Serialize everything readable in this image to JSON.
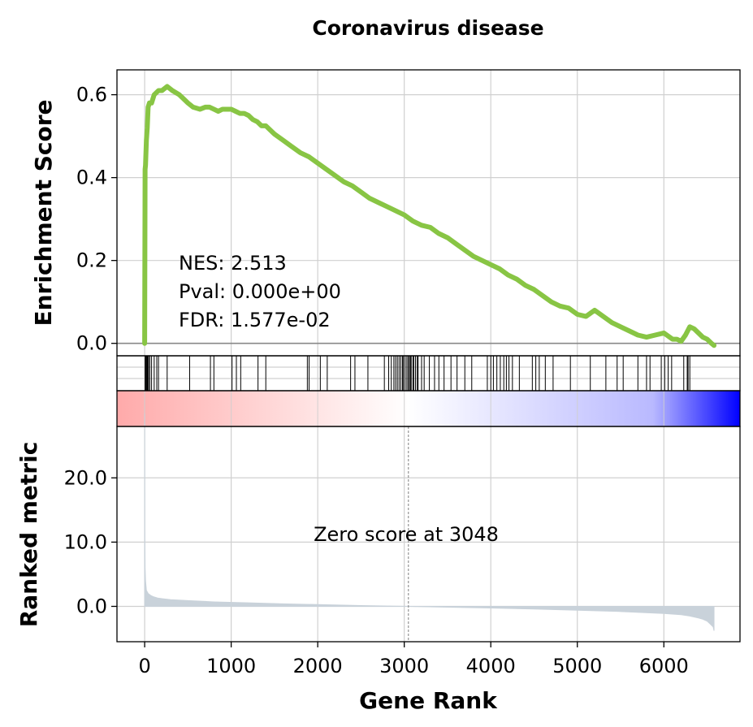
{
  "chart_data": {
    "type": "line",
    "title": "Coronavirus disease",
    "panels": {
      "enrichment": {
        "ylabel": "Enrichment Score",
        "ylim": [
          -0.03,
          0.66
        ],
        "yticks": [
          0.0,
          0.2,
          0.4,
          0.6
        ],
        "ytick_labels": [
          "0.0",
          "0.2",
          "0.4",
          "0.6"
        ],
        "line_color": "#88c544",
        "series": [
          {
            "x": [
              0,
              5,
              10,
              20,
              30,
              40,
              55,
              80,
              110,
              160,
              200,
              260,
              320,
              400,
              450,
              500,
              560,
              640,
              700,
              750,
              800,
              850,
              900,
              950,
              1000,
              1050,
              1100,
              1150,
              1200,
              1250,
              1300,
              1350,
              1400,
              1500,
              1600,
              1700,
              1800,
              1900,
              2000,
              2100,
              2200,
              2300,
              2400,
              2500,
              2600,
              2700,
              2800,
              2900,
              3000,
              3100,
              3200,
              3300,
              3400,
              3500,
              3600,
              3700,
              3800,
              3900,
              4000,
              4100,
              4200,
              4300,
              4400,
              4500,
              4600,
              4700,
              4800,
              4900,
              5000,
              5100,
              5200,
              5300,
              5400,
              5500,
              5600,
              5700,
              5800,
              5900,
              6000,
              6100,
              6150,
              6200,
              6250,
              6300,
              6350,
              6400,
              6450,
              6500,
              6550,
              6580
            ],
            "values": [
              0.0,
              0.42,
              0.43,
              0.49,
              0.52,
              0.57,
              0.58,
              0.58,
              0.6,
              0.61,
              0.61,
              0.62,
              0.61,
              0.6,
              0.59,
              0.58,
              0.57,
              0.565,
              0.57,
              0.57,
              0.565,
              0.56,
              0.565,
              0.565,
              0.565,
              0.56,
              0.555,
              0.555,
              0.55,
              0.54,
              0.535,
              0.525,
              0.525,
              0.505,
              0.49,
              0.475,
              0.46,
              0.45,
              0.435,
              0.42,
              0.405,
              0.39,
              0.38,
              0.365,
              0.35,
              0.34,
              0.33,
              0.32,
              0.31,
              0.295,
              0.285,
              0.28,
              0.265,
              0.255,
              0.24,
              0.225,
              0.21,
              0.2,
              0.19,
              0.18,
              0.165,
              0.155,
              0.14,
              0.13,
              0.115,
              0.1,
              0.09,
              0.085,
              0.07,
              0.065,
              0.08,
              0.065,
              0.05,
              0.04,
              0.03,
              0.02,
              0.015,
              0.02,
              0.025,
              0.01,
              0.01,
              0.005,
              0.02,
              0.04,
              0.035,
              0.025,
              0.015,
              0.01,
              0.0,
              -0.005
            ]
          }
        ],
        "annotations": [
          "NES: 2.513",
          "Pval: 0.000e+00",
          "FDR: 1.577e-02"
        ]
      },
      "hits": {
        "positions": [
          5,
          12,
          20,
          28,
          36,
          45,
          60,
          80,
          110,
          140,
          160,
          260,
          520,
          760,
          800,
          1010,
          1060,
          1110,
          1310,
          1400,
          1880,
          1900,
          2030,
          2110,
          2380,
          2430,
          2580,
          2770,
          2820,
          2850,
          2880,
          2900,
          2920,
          2940,
          2960,
          2980,
          2990,
          3010,
          3030,
          3045,
          3060,
          3070,
          3080,
          3100,
          3110,
          3130,
          3150,
          3160,
          3200,
          3230,
          3290,
          3350,
          3400,
          3460,
          3540,
          3610,
          3700,
          3780,
          3960,
          4000,
          4030,
          4070,
          4110,
          4150,
          4180,
          4210,
          4250,
          4330,
          4480,
          4520,
          4560,
          4630,
          4720,
          4920,
          5150,
          5330,
          5460,
          5530,
          5700,
          5800,
          5840,
          5970,
          6010,
          6050,
          6090,
          6230,
          6270,
          6280,
          6300
        ]
      },
      "heatmap": {
        "colormap": "bwr",
        "low": "#0000ff",
        "mid": "#ffffff",
        "high": "#ffaaaa"
      },
      "ranked": {
        "xlabel": "Gene Rank",
        "ylabel": "Ranked metric",
        "ylim": [
          -5.5,
          28
        ],
        "yticks": [
          0.0,
          10.0,
          20.0
        ],
        "ytick_labels": [
          "0.0",
          "10.0",
          "20.0"
        ],
        "fill_color": "#c9d2da",
        "zero_score_rank": 3048,
        "annotation": "Zero score at 3048",
        "x": [
          0,
          2,
          5,
          10,
          20,
          40,
          70,
          100,
          150,
          200,
          300,
          500,
          800,
          1200,
          1600,
          2000,
          2500,
          3048,
          3500,
          4000,
          4500,
          5000,
          5500,
          6000,
          6200,
          6300,
          6400,
          6450,
          6500,
          6540,
          6570,
          6580
        ],
        "values": [
          30,
          12,
          6,
          4,
          2.5,
          2.0,
          1.7,
          1.5,
          1.3,
          1.2,
          1.05,
          0.9,
          0.7,
          0.55,
          0.4,
          0.28,
          0.12,
          0.0,
          -0.12,
          -0.25,
          -0.42,
          -0.6,
          -0.8,
          -1.1,
          -1.3,
          -1.5,
          -1.8,
          -2.0,
          -2.3,
          -2.8,
          -3.2,
          -3.8
        ]
      }
    },
    "xlim": [
      -320,
      6880
    ],
    "xticks": [
      0,
      1000,
      2000,
      3000,
      4000,
      5000,
      6000
    ],
    "xtick_labels": [
      "0",
      "1000",
      "2000",
      "3000",
      "4000",
      "5000",
      "6000"
    ],
    "grid": true
  }
}
